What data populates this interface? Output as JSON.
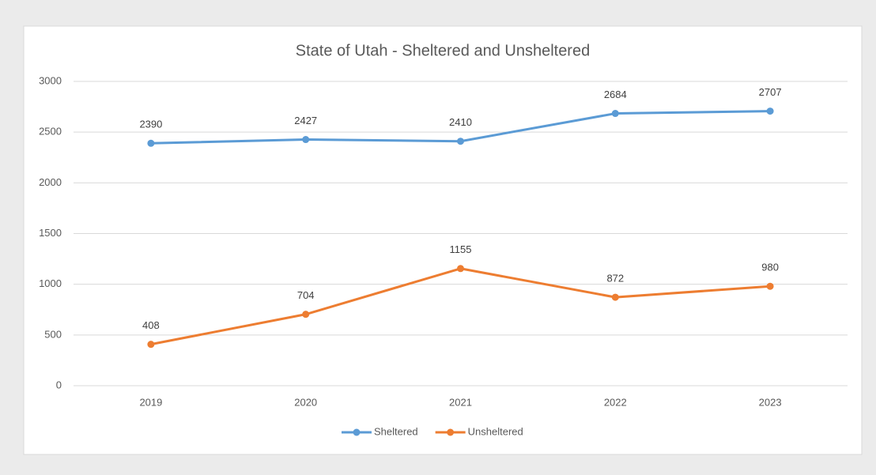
{
  "chart_data": {
    "type": "line",
    "title": "State of Utah - Sheltered and Unsheltered",
    "categories": [
      "2019",
      "2020",
      "2021",
      "2022",
      "2023"
    ],
    "series": [
      {
        "name": "Sheltered",
        "color": "#5b9bd5",
        "values": [
          2390,
          2427,
          2410,
          2684,
          2707
        ]
      },
      {
        "name": "Unsheltered",
        "color": "#ed7d31",
        "values": [
          408,
          704,
          1155,
          872,
          980
        ]
      }
    ],
    "ylim": [
      0,
      3000
    ],
    "yticks": [
      0,
      500,
      1000,
      1500,
      2000,
      2500,
      3000
    ],
    "grid": true,
    "legend": "bottom"
  }
}
